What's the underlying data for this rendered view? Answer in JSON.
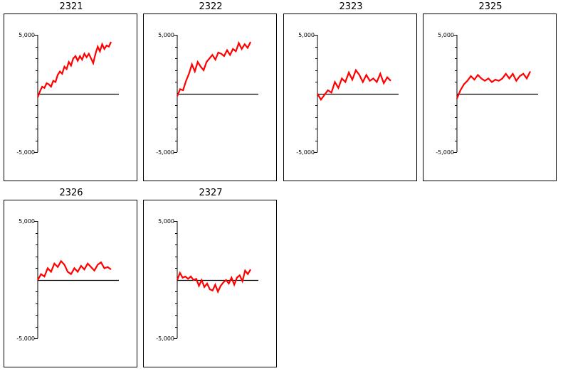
{
  "chart_data": [
    {
      "type": "line",
      "title": "2321",
      "yticks": [
        "5,000",
        "-5,000"
      ],
      "ylim": [
        -5000,
        5000
      ],
      "line_color": "#ff0000",
      "series": [
        {
          "values": [
            -300,
            200,
            600,
            500,
            900,
            800,
            600,
            1100,
            1000,
            1600,
            1900,
            1700,
            2300,
            2100,
            2700,
            2400,
            3000,
            3200,
            2800,
            3200,
            2900,
            3400,
            3100,
            3400,
            3000,
            2600,
            3400,
            4000,
            3600,
            4200,
            3800,
            4100,
            4000,
            4400
          ]
        }
      ]
    },
    {
      "type": "line",
      "title": "2322",
      "yticks": [
        "5,000",
        "-5,000"
      ],
      "ylim": [
        -5000,
        5000
      ],
      "line_color": "#ff0000",
      "series": [
        {
          "values": [
            -200,
            400,
            300,
            1100,
            1700,
            2500,
            1900,
            2700,
            2300,
            2000,
            2700,
            3000,
            3300,
            2900,
            3500,
            3400,
            3200,
            3700,
            3300,
            3800,
            3600,
            4300,
            3800,
            4200,
            3900,
            4400
          ]
        }
      ]
    },
    {
      "type": "line",
      "title": "2323",
      "yticks": [
        "5,000",
        "-5,000"
      ],
      "ylim": [
        -5000,
        5000
      ],
      "line_color": "#ff0000",
      "series": [
        {
          "values": [
            0,
            -500,
            -100,
            300,
            100,
            1000,
            500,
            1300,
            1000,
            1800,
            1200,
            2000,
            1600,
            1000,
            1600,
            1100,
            1300,
            1000,
            1700,
            900,
            1400,
            1100
          ]
        }
      ]
    },
    {
      "type": "line",
      "title": "2325",
      "yticks": [
        "5,000",
        "-5,000"
      ],
      "ylim": [
        -5000,
        5000
      ],
      "line_color": "#ff0000",
      "series": [
        {
          "values": [
            -400,
            300,
            800,
            1100,
            1500,
            1200,
            1600,
            1300,
            1100,
            1300,
            1000,
            1200,
            1100,
            1300,
            1700,
            1300,
            1700,
            1100,
            1500,
            1700,
            1300,
            1900
          ]
        }
      ]
    },
    {
      "type": "line",
      "title": "2326",
      "yticks": [
        "5,000",
        "-5,000"
      ],
      "ylim": [
        -5000,
        5000
      ],
      "line_color": "#ff0000",
      "series": [
        {
          "values": [
            0,
            500,
            300,
            1000,
            700,
            1400,
            1100,
            1600,
            1300,
            700,
            500,
            1000,
            700,
            1200,
            900,
            1400,
            1100,
            800,
            1300,
            1500,
            1000,
            1100,
            900
          ]
        }
      ]
    },
    {
      "type": "line",
      "title": "2327",
      "yticks": [
        "5,000",
        "-5,000"
      ],
      "ylim": [
        -5000,
        5000
      ],
      "line_color": "#ff0000",
      "series": [
        {
          "values": [
            0,
            600,
            200,
            300,
            100,
            300,
            0,
            100,
            -500,
            0,
            -600,
            -300,
            -800,
            -900,
            -400,
            -1000,
            -500,
            -200,
            0,
            -300,
            200,
            -400,
            200,
            400,
            -100,
            800,
            500,
            900
          ]
        }
      ]
    }
  ]
}
